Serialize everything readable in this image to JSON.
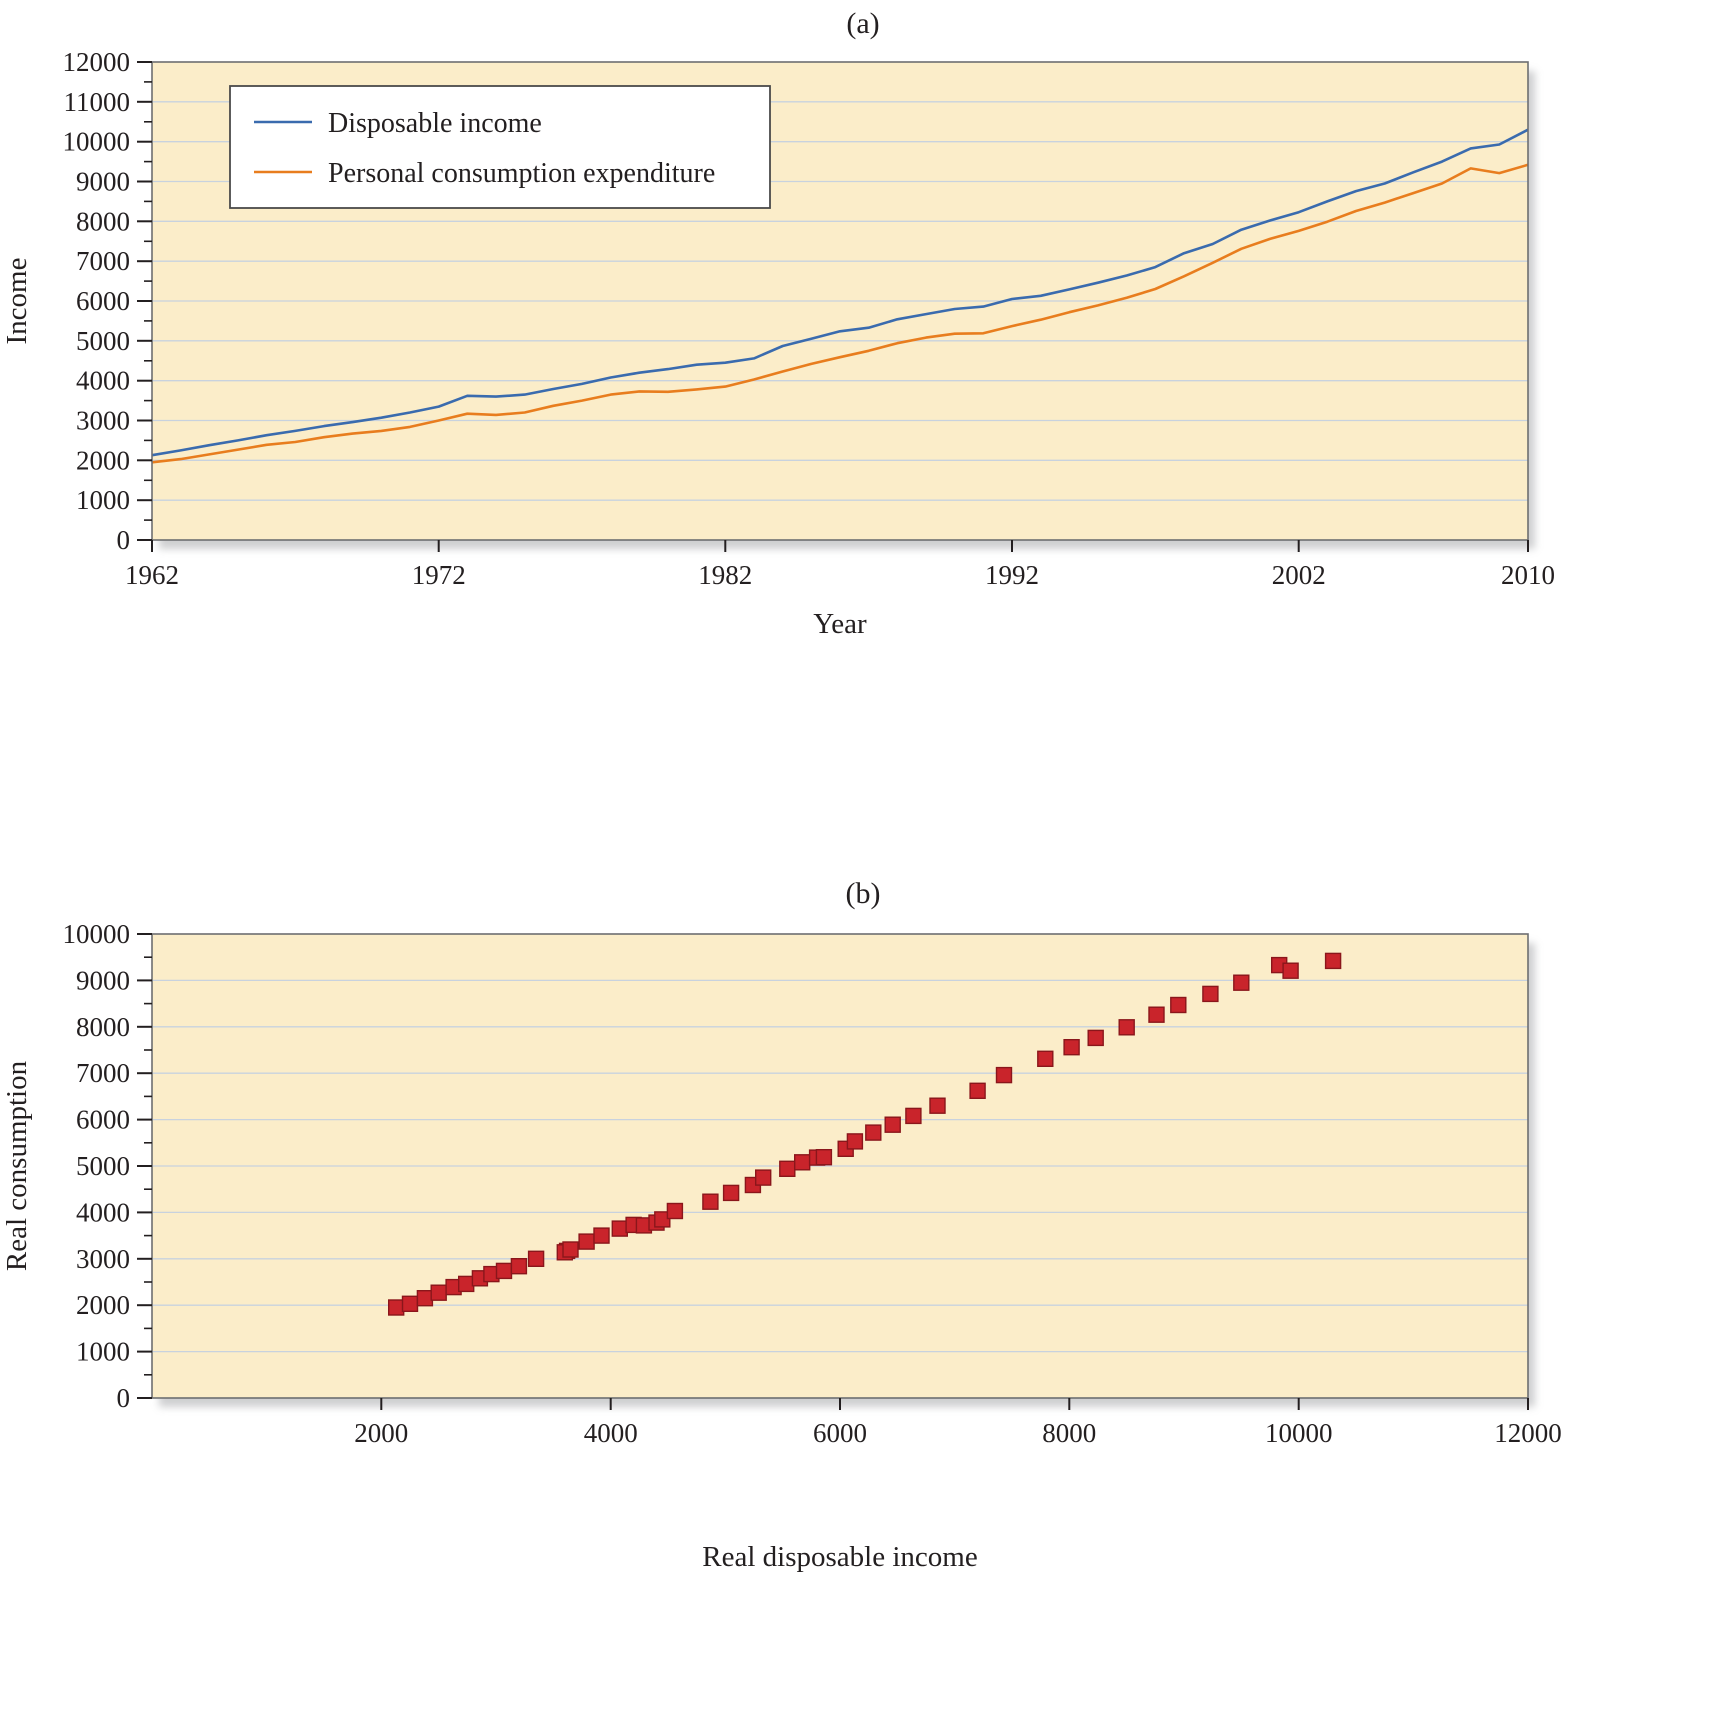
{
  "figure": {
    "bg": "#FFFFFF",
    "plot_bg": "#FBEDC9",
    "grid_color": "#C8D2DE",
    "border_color": "#6D6E71",
    "tick_color": "#231F20",
    "text_color": "#231F20",
    "shadow_color": "#A7A9AC",
    "legend_border": "#4A4A4A"
  },
  "chart_data": [
    {
      "type": "line",
      "panel_label": "(a)",
      "xlabel": "Year",
      "ylabel": "Income",
      "xlim": [
        1962,
        2010
      ],
      "xticks": [
        1962,
        1972,
        1982,
        1992,
        2002,
        2010
      ],
      "ylim": [
        0,
        12000
      ],
      "ytick_step": 1000,
      "ytick_minor_step": 500,
      "grid": "horizontal",
      "legend": {
        "position": "top-left",
        "entries": [
          {
            "label": "Disposable income",
            "color": "#3A6BAE"
          },
          {
            "label": "Personal consumption expenditure",
            "color": "#E87D1E"
          }
        ]
      },
      "x": [
        1962,
        1963,
        1964,
        1965,
        1966,
        1967,
        1968,
        1969,
        1970,
        1971,
        1972,
        1973,
        1974,
        1975,
        1976,
        1977,
        1978,
        1979,
        1980,
        1981,
        1982,
        1983,
        1984,
        1985,
        1986,
        1987,
        1988,
        1989,
        1990,
        1991,
        1992,
        1993,
        1994,
        1995,
        1996,
        1997,
        1998,
        1999,
        2000,
        2001,
        2002,
        2003,
        2004,
        2005,
        2006,
        2007,
        2008,
        2009,
        2010
      ],
      "series": [
        {
          "name": "Disposable income",
          "color": "#3A6BAE",
          "values": [
            2130,
            2250,
            2380,
            2500,
            2630,
            2740,
            2860,
            2960,
            3070,
            3200,
            3350,
            3620,
            3600,
            3650,
            3790,
            3920,
            4080,
            4200,
            4290,
            4400,
            4450,
            4560,
            4870,
            5050,
            5240,
            5330,
            5540,
            5670,
            5800,
            5860,
            6050,
            6130,
            6290,
            6460,
            6640,
            6850,
            7200,
            7430,
            7790,
            8020,
            8230,
            8500,
            8760,
            8950,
            9230,
            9500,
            9830,
            9930,
            10300
          ]
        },
        {
          "name": "Personal consumption expenditure",
          "color": "#E87D1E",
          "values": [
            1950,
            2030,
            2150,
            2270,
            2390,
            2460,
            2580,
            2670,
            2740,
            2840,
            3000,
            3170,
            3140,
            3200,
            3370,
            3500,
            3650,
            3730,
            3720,
            3780,
            3850,
            4030,
            4230,
            4420,
            4590,
            4750,
            4940,
            5080,
            5180,
            5190,
            5370,
            5530,
            5720,
            5890,
            6080,
            6300,
            6620,
            6960,
            7310,
            7560,
            7760,
            7990,
            8260,
            8470,
            8710,
            8950,
            9330,
            9210,
            9420
          ]
        }
      ]
    },
    {
      "type": "scatter",
      "panel_label": "(b)",
      "xlabel": "Real disposable income",
      "ylabel": "Real consumption",
      "xlim": [
        0,
        12000
      ],
      "xticks": [
        2000,
        4000,
        6000,
        8000,
        10000,
        12000
      ],
      "ylim": [
        0,
        10000
      ],
      "ytick_step": 1000,
      "ytick_minor_step": 500,
      "grid": "horizontal",
      "marker": {
        "shape": "square",
        "size": 15,
        "fill": "#C9242B",
        "stroke": "#8A161B"
      },
      "points": {
        "x": [
          2130,
          2250,
          2380,
          2500,
          2630,
          2740,
          2860,
          2960,
          3070,
          3200,
          3350,
          3620,
          3600,
          3650,
          3790,
          3920,
          4080,
          4200,
          4290,
          4400,
          4450,
          4560,
          4870,
          5050,
          5240,
          5330,
          5540,
          5670,
          5800,
          5860,
          6050,
          6130,
          6290,
          6460,
          6640,
          6850,
          7200,
          7430,
          7790,
          8020,
          8230,
          8500,
          8760,
          8950,
          9230,
          9500,
          9830,
          9930,
          10300
        ],
        "y": [
          1950,
          2030,
          2150,
          2270,
          2390,
          2460,
          2580,
          2670,
          2740,
          2840,
          3000,
          3170,
          3140,
          3200,
          3370,
          3500,
          3650,
          3730,
          3720,
          3780,
          3850,
          4030,
          4230,
          4420,
          4590,
          4750,
          4940,
          5080,
          5180,
          5190,
          5370,
          5530,
          5720,
          5890,
          6080,
          6300,
          6620,
          6960,
          7310,
          7560,
          7760,
          7990,
          8260,
          8470,
          8710,
          8950,
          9330,
          9210,
          9420
        ]
      }
    }
  ]
}
